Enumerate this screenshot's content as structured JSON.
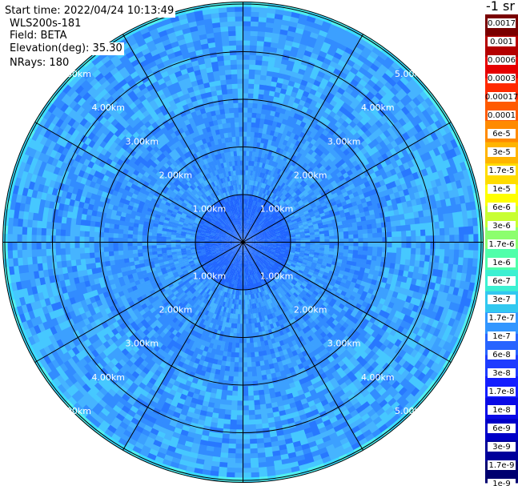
{
  "header": {
    "start_time": "Start time: 2022/04/24 10:13:49",
    "instrument": "WLS200s-181",
    "field": "Field: BETA",
    "elevation": "Elevation(deg): 35.30",
    "nrays": "NRays: 180"
  },
  "chart_data": {
    "type": "heatmap",
    "projection": "polar (PPI)",
    "range_rings_km": [
      1,
      2,
      3,
      4,
      5
    ],
    "range_ring_labels": [
      "1.00km",
      "2.00km",
      "3.00km",
      "4.00km",
      "5.00km"
    ],
    "spoke_spacing_deg": 30,
    "nrays": 180,
    "grid": true,
    "colorbar": {
      "unit_label": "-1 sr",
      "position": "right",
      "colors": [
        "#7a0000",
        "#b40000",
        "#e60000",
        "#ff2a00",
        "#ff5a00",
        "#ff8a00",
        "#ffb400",
        "#ffdc00",
        "#ffff00",
        "#c8ff32",
        "#8cff6e",
        "#50ffaa",
        "#3cf0d2",
        "#32c8f0",
        "#3296ff",
        "#2864ff",
        "#1e3cff",
        "#141eff",
        "#0a0ae6",
        "#0000c8",
        "#00009a",
        "#000070"
      ],
      "labels": [
        "0.0017",
        "0.001",
        "0.0006",
        "0.0003",
        "0.00017",
        "0.0001",
        "6e-5",
        "3e-5",
        "1.7e-5",
        "1e-5",
        "6e-6",
        "3e-6",
        "1.7e-6",
        "1e-6",
        "6e-7",
        "3e-7",
        "1.7e-7",
        "1e-7",
        "6e-8",
        "3e-8",
        "1.7e-8",
        "1e-8",
        "6e-9",
        "3e-9",
        "1.7e-9",
        "1e-9"
      ]
    }
  }
}
